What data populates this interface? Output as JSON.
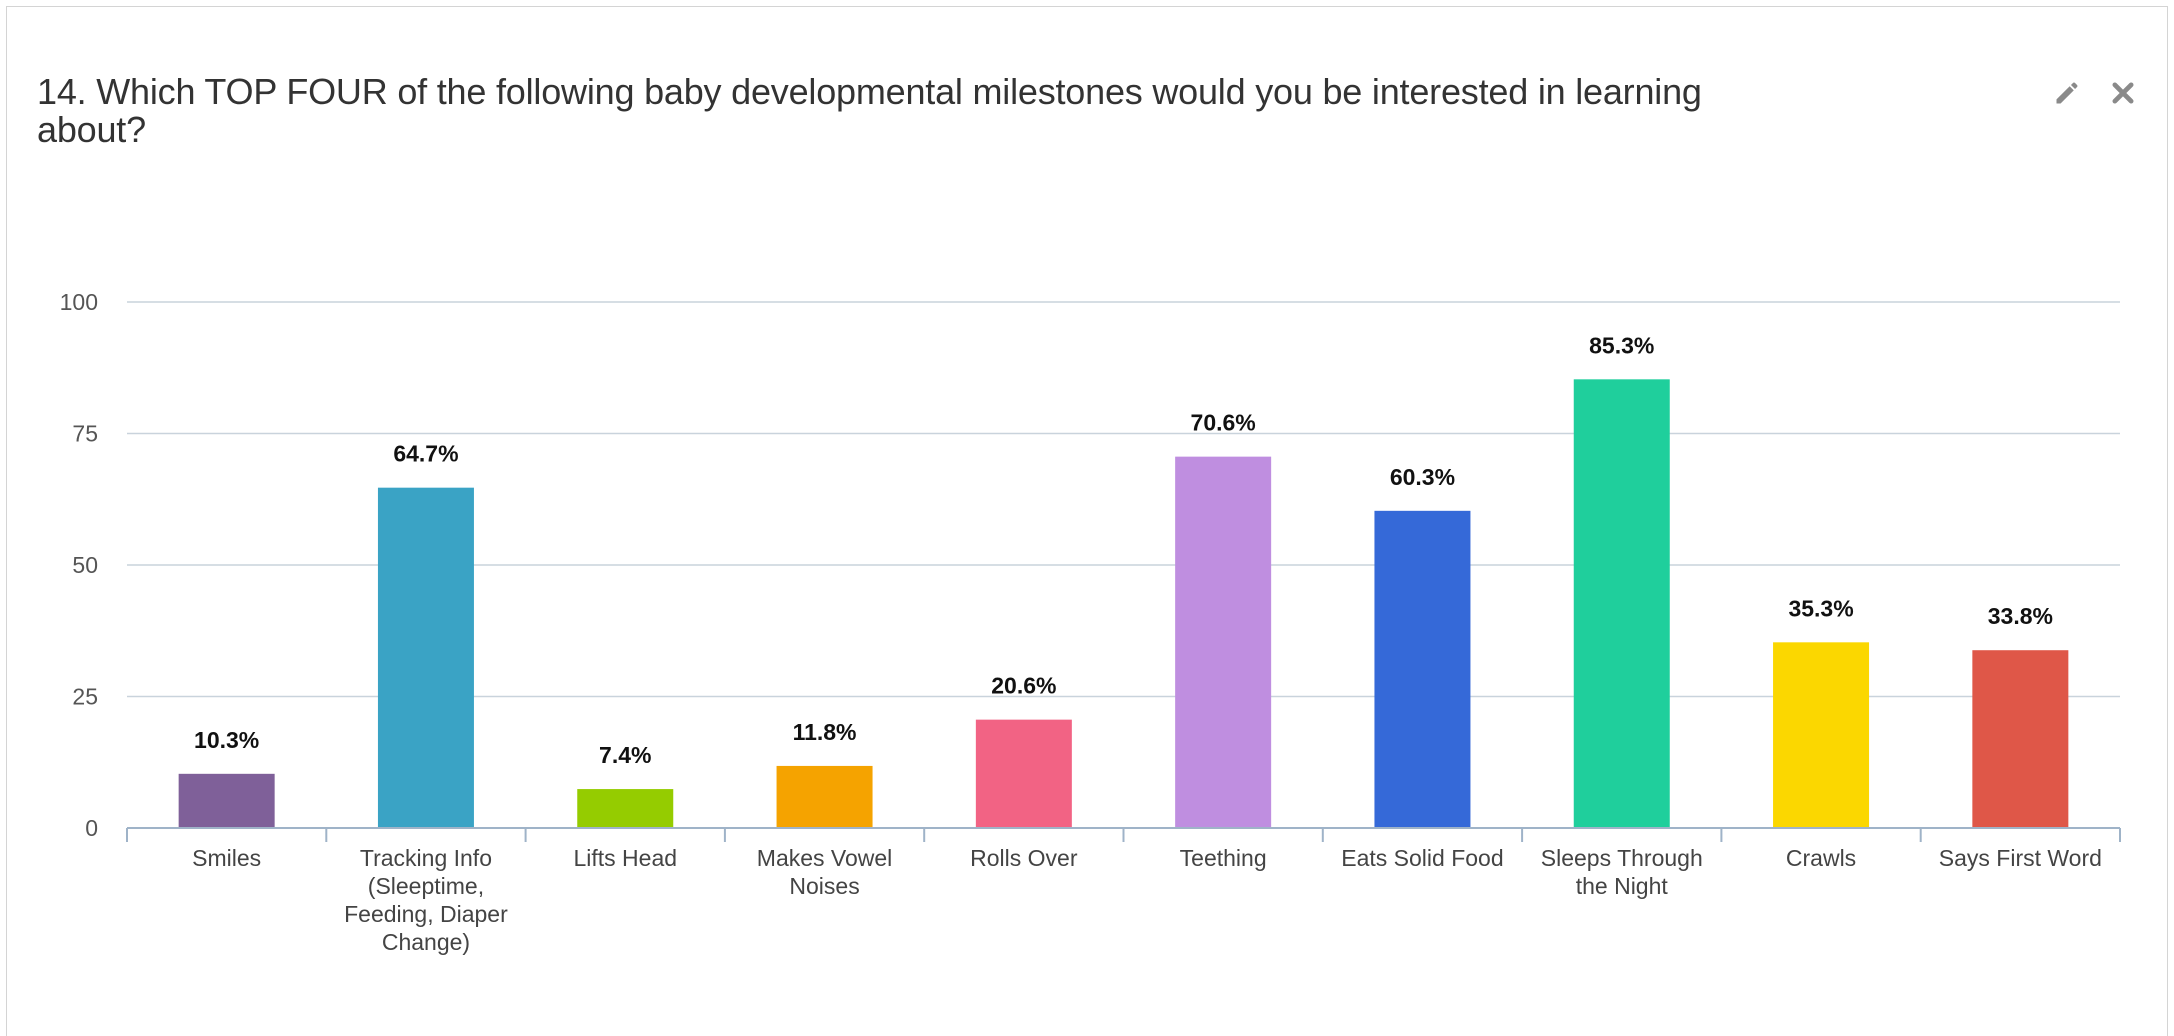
{
  "question": {
    "title": "14. Which TOP FOUR of the following baby developmental milestones would you be interested in learning about?"
  },
  "icons": {
    "edit": "pencil-icon",
    "close": "close-icon"
  },
  "chart_data": {
    "type": "bar",
    "title": "",
    "xlabel": "",
    "ylabel": "",
    "ylim": [
      0,
      100
    ],
    "yticks": [
      0,
      25,
      50,
      75,
      100
    ],
    "grid": true,
    "categories": [
      "Smiles",
      "Tracking Info (Sleeptime, Feeding, Diaper Change)",
      "Lifts Head",
      "Makes Vowel Noises",
      "Rolls Over",
      "Teething",
      "Eats Solid Food",
      "Sleeps Through the Night",
      "Crawls",
      "Says First Word"
    ],
    "category_lines": [
      [
        "Smiles"
      ],
      [
        "Tracking Info",
        "(Sleeptime,",
        "Feeding, Diaper",
        "Change)"
      ],
      [
        "Lifts Head"
      ],
      [
        "Makes Vowel",
        "Noises"
      ],
      [
        "Rolls Over"
      ],
      [
        "Teething"
      ],
      [
        "Eats Solid Food"
      ],
      [
        "Sleeps Through",
        "the Night"
      ],
      [
        "Crawls"
      ],
      [
        "Says First Word"
      ]
    ],
    "values": [
      10.3,
      64.7,
      7.4,
      11.8,
      20.6,
      70.6,
      60.3,
      85.3,
      35.3,
      33.8
    ],
    "labels": [
      "10.3%",
      "64.7%",
      "7.4%",
      "11.8%",
      "20.6%",
      "70.6%",
      "60.3%",
      "85.3%",
      "35.3%",
      "33.8%"
    ],
    "colors": [
      "#7f6099",
      "#3aa3c5",
      "#95cc00",
      "#f5a300",
      "#f26384",
      "#bf8ee0",
      "#3569d8",
      "#1fcf9c",
      "#fbd700",
      "#df5748"
    ]
  }
}
